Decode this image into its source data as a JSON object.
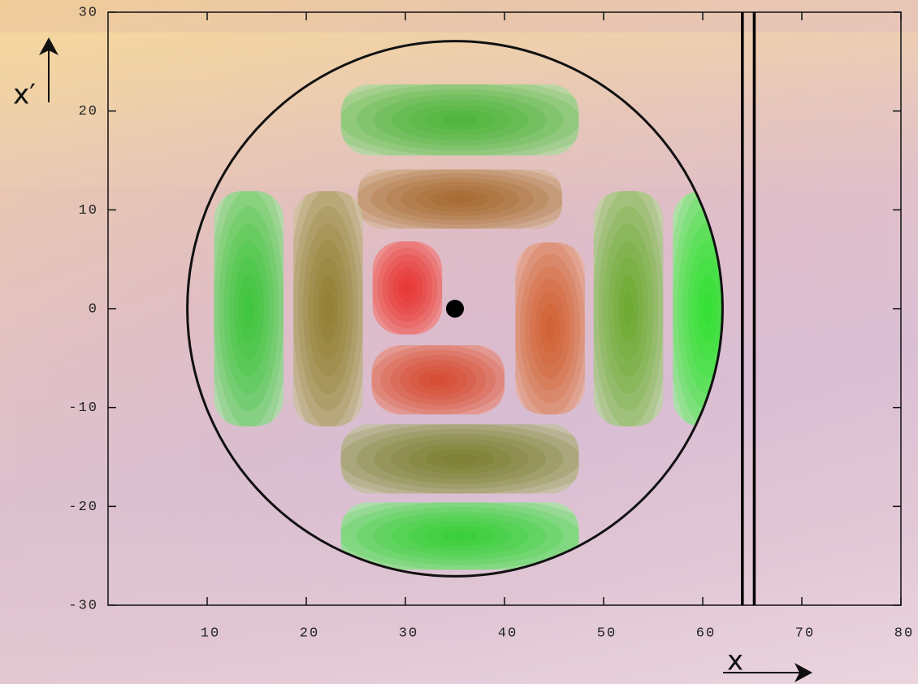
{
  "chart_data": {
    "type": "phase-space",
    "x_label": "x",
    "y_label": "x′",
    "xlim": [
      0,
      80
    ],
    "ylim": [
      -30,
      30
    ],
    "xticks": [
      10,
      20,
      30,
      40,
      50,
      60,
      70,
      80
    ],
    "yticks": [
      -30,
      -20,
      -10,
      0,
      10,
      20,
      30
    ],
    "circle": {
      "x": 35,
      "y": 0,
      "r": 27
    },
    "center_dot": {
      "x": 35,
      "y": 0
    },
    "vlines": [
      64.0,
      65.2
    ],
    "blobs": [
      {
        "x": 35.5,
        "y": 19.1,
        "dx": 12,
        "dy": 3.6,
        "color": "#30b020"
      },
      {
        "x": 35.5,
        "y": 11.1,
        "dx": 10.3,
        "dy": 3.0,
        "color": "#9a5a14"
      },
      {
        "x": 14.2,
        "y": 0,
        "dx": 3.5,
        "dy": 11.9,
        "color": "#20c020"
      },
      {
        "x": 22.2,
        "y": 0,
        "dx": 3.5,
        "dy": 11.9,
        "color": "#857010"
      },
      {
        "x": 30.2,
        "y": 2.1,
        "dx": 3.5,
        "dy": 4.7,
        "color": "#e81a10"
      },
      {
        "x": 44.6,
        "y": -2.0,
        "dx": 3.5,
        "dy": 8.7,
        "color": "#cc4a10"
      },
      {
        "x": 52.5,
        "y": 0,
        "dx": 3.5,
        "dy": 11.9,
        "color": "#58a010"
      },
      {
        "x": 60.5,
        "y": 0,
        "dx": 3.5,
        "dy": 11.9,
        "color": "#10e010"
      },
      {
        "x": 33.3,
        "y": -7.2,
        "dx": 6.7,
        "dy": 3.5,
        "color": "#d43410"
      },
      {
        "x": 35.5,
        "y": -15.2,
        "dx": 12,
        "dy": 3.5,
        "color": "#687010"
      },
      {
        "x": 35.5,
        "y": -23.0,
        "dx": 12,
        "dy": 3.4,
        "color": "#18d018"
      }
    ]
  }
}
